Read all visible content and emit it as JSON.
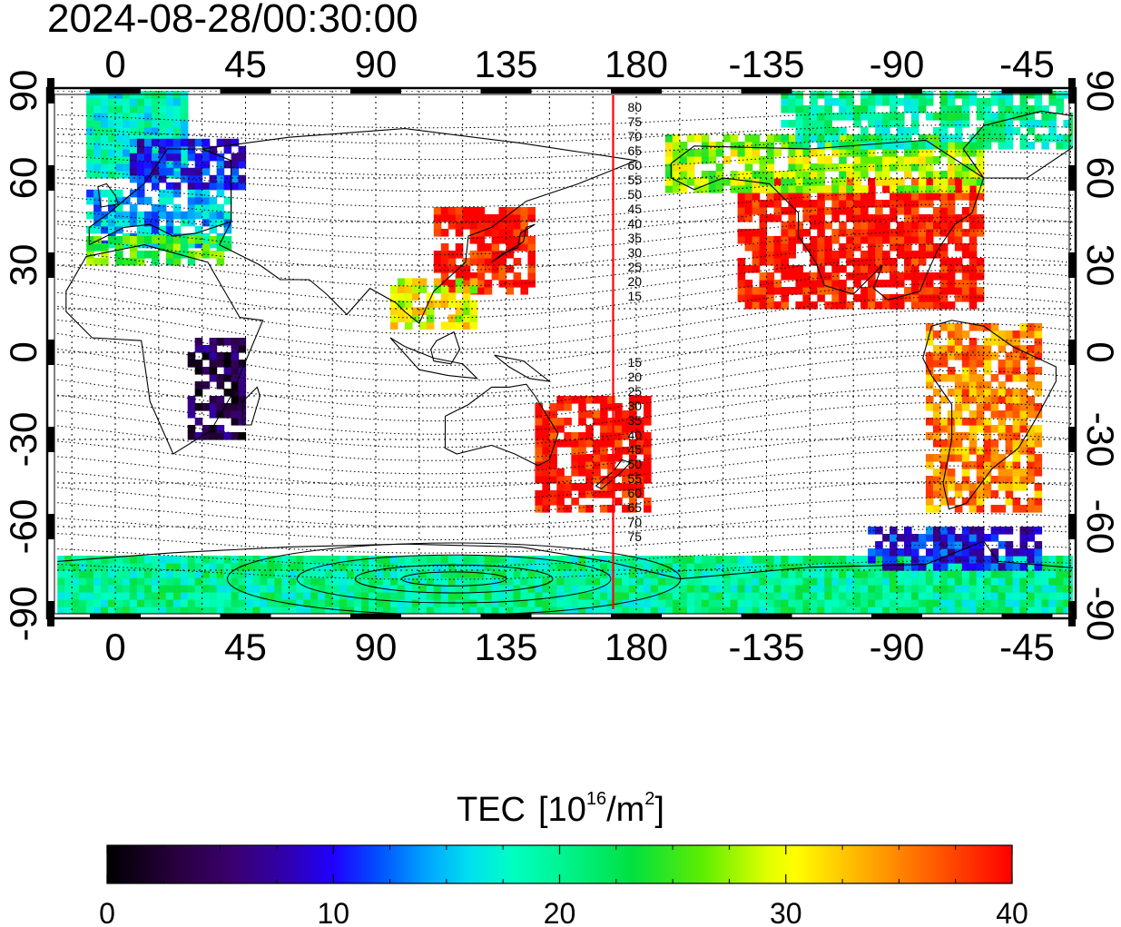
{
  "timestamp": "2024-08-28/00:30:00",
  "map": {
    "axes": {
      "top_ticks": [
        {
          "lon": 0,
          "label": "0"
        },
        {
          "lon": 45,
          "label": "45"
        },
        {
          "lon": 90,
          "label": "90"
        },
        {
          "lon": 135,
          "label": "135"
        },
        {
          "lon": 180,
          "label": "180"
        },
        {
          "lon": 225,
          "label": "-135"
        },
        {
          "lon": 270,
          "label": "-90"
        },
        {
          "lon": 315,
          "label": "-45"
        }
      ],
      "bottom_ticks": [
        {
          "lon": 0,
          "label": "0"
        },
        {
          "lon": 45,
          "label": "45"
        },
        {
          "lon": 90,
          "label": "90"
        },
        {
          "lon": 135,
          "label": "135"
        },
        {
          "lon": 180,
          "label": "180"
        },
        {
          "lon": 225,
          "label": "-135"
        },
        {
          "lon": 270,
          "label": "-90"
        },
        {
          "lon": 315,
          "label": "-45"
        }
      ],
      "left_ticks": [
        {
          "lat": 90,
          "label": "90"
        },
        {
          "lat": 60,
          "label": "60"
        },
        {
          "lat": 30,
          "label": "30"
        },
        {
          "lat": 0,
          "label": "0"
        },
        {
          "lat": -30,
          "label": "-30"
        },
        {
          "lat": -60,
          "label": "-60"
        },
        {
          "lat": -90,
          "label": "-90"
        }
      ],
      "right_ticks": [
        {
          "lat": 90,
          "label": "90"
        },
        {
          "lat": 60,
          "label": "60"
        },
        {
          "lat": 30,
          "label": "30"
        },
        {
          "lat": 0,
          "label": "0"
        },
        {
          "lat": -30,
          "label": "-30"
        },
        {
          "lat": -60,
          "label": "-60"
        },
        {
          "lat": -90,
          "label": "-90"
        }
      ],
      "lon_range": [
        -20,
        340
      ],
      "lat_range": [
        -90,
        90
      ],
      "grid_spacing_deg": 15
    },
    "sun_meridian_lon": 172,
    "sun_meridian_color": "#ff0000",
    "contour_labels": {
      "north": [
        "80",
        "75",
        "70",
        "65",
        "60",
        "55",
        "50",
        "45",
        "40",
        "35",
        "30",
        "25",
        "20",
        "15"
      ],
      "south": [
        "15",
        "20",
        "25",
        "30",
        "35",
        "40",
        "45",
        "50",
        "55",
        "60",
        "65",
        "70",
        "75"
      ]
    }
  },
  "chart_data": {
    "type": "heatmap",
    "title": "2024-08-28/00:30:00",
    "variable": "TEC",
    "colorbar": {
      "label": "TEC",
      "units": "[10^16/m^2]",
      "min": 0,
      "max": 40,
      "ticks": [
        "0",
        "10",
        "20",
        "30",
        "40"
      ],
      "tick_values": [
        0,
        10,
        20,
        30,
        40
      ],
      "colors": [
        "#000000",
        "#3a0070",
        "#2a00d8",
        "#0050ff",
        "#00c8ff",
        "#00ffb0",
        "#00e040",
        "#80f000",
        "#ffff00",
        "#ff8000",
        "#ff2000",
        "#ff0000"
      ]
    },
    "regions": [
      {
        "name": "North Atlantic / Greenland band",
        "lon": [
          -10,
          25
        ],
        "lat": [
          60,
          88
        ],
        "tec": 18
      },
      {
        "name": "Scandinavia",
        "lon": [
          5,
          45
        ],
        "lat": [
          56,
          72
        ],
        "tec": 10
      },
      {
        "name": "Europe",
        "lon": [
          -10,
          40
        ],
        "lat": [
          36,
          56
        ],
        "tec": 15
      },
      {
        "name": "Mediterranean",
        "lon": [
          -10,
          40
        ],
        "lat": [
          30,
          38
        ],
        "tec": 25
      },
      {
        "name": "East Asia",
        "lon": [
          110,
          145
        ],
        "lat": [
          20,
          50
        ],
        "tec": 40
      },
      {
        "name": "Southeast Asia",
        "lon": [
          95,
          125
        ],
        "lat": [
          8,
          25
        ],
        "tec": 30
      },
      {
        "name": "Central Africa",
        "lon": [
          25,
          45
        ],
        "lat": [
          -30,
          5
        ],
        "tec": 4
      },
      {
        "name": "Australia / New Zealand",
        "lon": [
          145,
          185
        ],
        "lat": [
          -55,
          -15
        ],
        "tec": 40
      },
      {
        "name": "North America",
        "lon": [
          215,
          300
        ],
        "lat": [
          15,
          60
        ],
        "tec": 40
      },
      {
        "name": "Alaska / Canada",
        "lon": [
          190,
          300
        ],
        "lat": [
          55,
          75
        ],
        "tec": 28
      },
      {
        "name": "Arctic Canada",
        "lon": [
          230,
          340
        ],
        "lat": [
          70,
          88
        ],
        "tec": 20
      },
      {
        "name": "South America",
        "lon": [
          280,
          320
        ],
        "lat": [
          -55,
          10
        ],
        "tec": 35
      },
      {
        "name": "Antarctic band",
        "lon": [
          -20,
          340
        ],
        "lat": [
          -90,
          -72
        ],
        "tec": 20
      },
      {
        "name": "Southern Ocean south of S. America",
        "lon": [
          260,
          320
        ],
        "lat": [
          -75,
          -60
        ],
        "tec": 10
      }
    ]
  }
}
